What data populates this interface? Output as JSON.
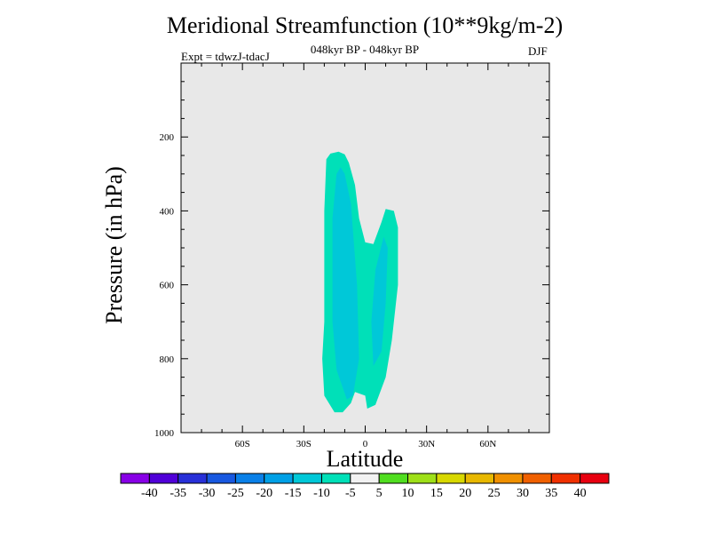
{
  "chart_data": {
    "type": "contour",
    "title": "Meridional Streamfunction (10**9kg/m-2)",
    "subtitle": "048kyr BP - 048kyr BP",
    "experiment": "Expt = tdwzJ-tdacJ",
    "season": "DJF",
    "xlabel": "Latitude",
    "ylabel": "Pressure (in hPa)",
    "xlim": [
      -90,
      90
    ],
    "ylim": [
      1000,
      0
    ],
    "x_ticks": [
      -60,
      -30,
      0,
      30,
      60
    ],
    "x_tick_labels": [
      "60S",
      "30S",
      "0",
      "30N",
      "60N"
    ],
    "y_ticks": [
      200,
      400,
      600,
      800,
      1000
    ],
    "y_tick_labels": [
      "200",
      "400",
      "600",
      "800",
      "1000"
    ],
    "background_color": "#e8e8e8",
    "contour_regions": [
      {
        "level": "-10 to -5",
        "color": "#00e0b8",
        "points": [
          [
            -15,
            945
          ],
          [
            -20,
            900
          ],
          [
            -21,
            800
          ],
          [
            -20,
            700
          ],
          [
            -20,
            550
          ],
          [
            -20,
            400
          ],
          [
            -19,
            260
          ],
          [
            -17,
            245
          ],
          [
            -13,
            240
          ],
          [
            -10,
            247
          ],
          [
            -8,
            270
          ],
          [
            -5,
            330
          ],
          [
            -3,
            420
          ],
          [
            0,
            485
          ],
          [
            4,
            490
          ],
          [
            8,
            430
          ],
          [
            10,
            395
          ],
          [
            14,
            400
          ],
          [
            16,
            445
          ],
          [
            16,
            600
          ],
          [
            13,
            750
          ],
          [
            10,
            850
          ],
          [
            5,
            925
          ],
          [
            1,
            935
          ],
          [
            0,
            900
          ],
          [
            -5,
            890
          ],
          [
            -7,
            920
          ],
          [
            -11,
            945
          ]
        ]
      },
      {
        "level": "-15 to -10",
        "color": "#00c8d8",
        "points": [
          [
            -9,
            910
          ],
          [
            -14,
            830
          ],
          [
            -16,
            700
          ],
          [
            -16,
            550
          ],
          [
            -16,
            420
          ],
          [
            -14,
            300
          ],
          [
            -12,
            282
          ],
          [
            -10,
            300
          ],
          [
            -7,
            380
          ],
          [
            -4,
            600
          ],
          [
            -3,
            800
          ],
          [
            -6,
            900
          ]
        ]
      },
      {
        "level": "-15 to -10",
        "color": "#00c8d8",
        "points": [
          [
            4,
            820
          ],
          [
            3,
            700
          ],
          [
            5,
            560
          ],
          [
            9,
            470
          ],
          [
            11,
            500
          ],
          [
            10,
            650
          ],
          [
            8,
            780
          ]
        ]
      }
    ],
    "colorbar": {
      "levels": [
        "-40",
        "-35",
        "-30",
        "-25",
        "-20",
        "-15",
        "-10",
        "-5",
        "5",
        "10",
        "15",
        "20",
        "25",
        "30",
        "35",
        "40"
      ],
      "colors": [
        "#8800e6",
        "#5000d8",
        "#2830d8",
        "#1858e0",
        "#0a80e8",
        "#00a0e6",
        "#00c8d8",
        "#00e0b8",
        "#f2f2f2",
        "#50de20",
        "#9ee018",
        "#d8d800",
        "#e8b800",
        "#f09000",
        "#f06000",
        "#f03000",
        "#e80010"
      ]
    }
  }
}
